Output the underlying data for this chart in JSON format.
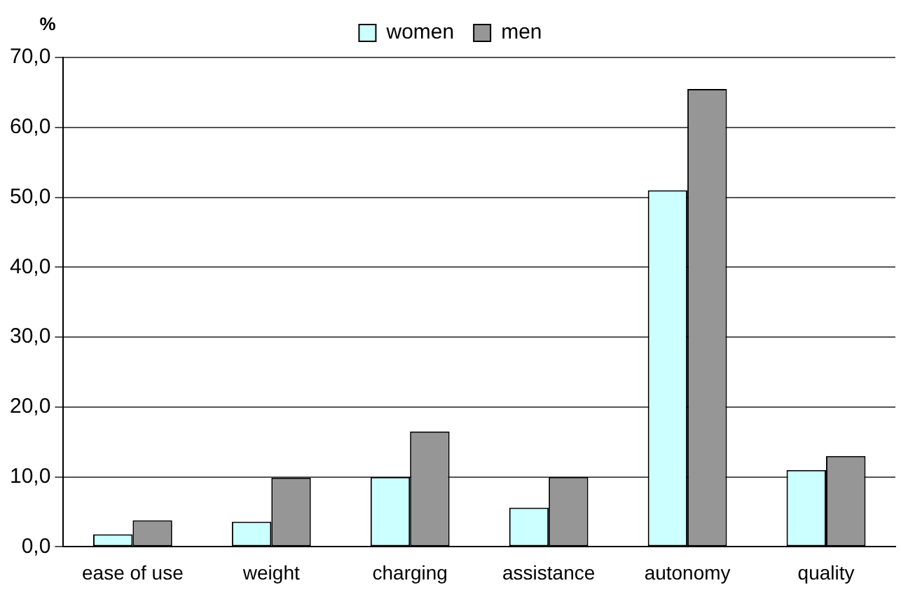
{
  "chart_data": {
    "type": "bar",
    "ylabel": "%",
    "categories": [
      "ease of use",
      "weight",
      "charging",
      "assistance",
      "autonomy",
      "quality"
    ],
    "series": [
      {
        "name": "women",
        "color": "#ccffff",
        "values": [
          1.8,
          3.6,
          10,
          5.6,
          51,
          11
        ]
      },
      {
        "name": "men",
        "color": "#969696",
        "values": [
          3.8,
          9.9,
          16.5,
          10,
          65.5,
          13
        ]
      }
    ],
    "ylim": [
      0,
      70
    ],
    "yticks": [
      {
        "value": 0,
        "label": "0,0"
      },
      {
        "value": 10,
        "label": "10,0"
      },
      {
        "value": 20,
        "label": "20,0"
      },
      {
        "value": 30,
        "label": "30,0"
      },
      {
        "value": 40,
        "label": "40,0"
      },
      {
        "value": 50,
        "label": "50,0"
      },
      {
        "value": 60,
        "label": "60,0"
      },
      {
        "value": 70,
        "label": "70,0"
      }
    ],
    "grid": "y",
    "legend": "top"
  }
}
